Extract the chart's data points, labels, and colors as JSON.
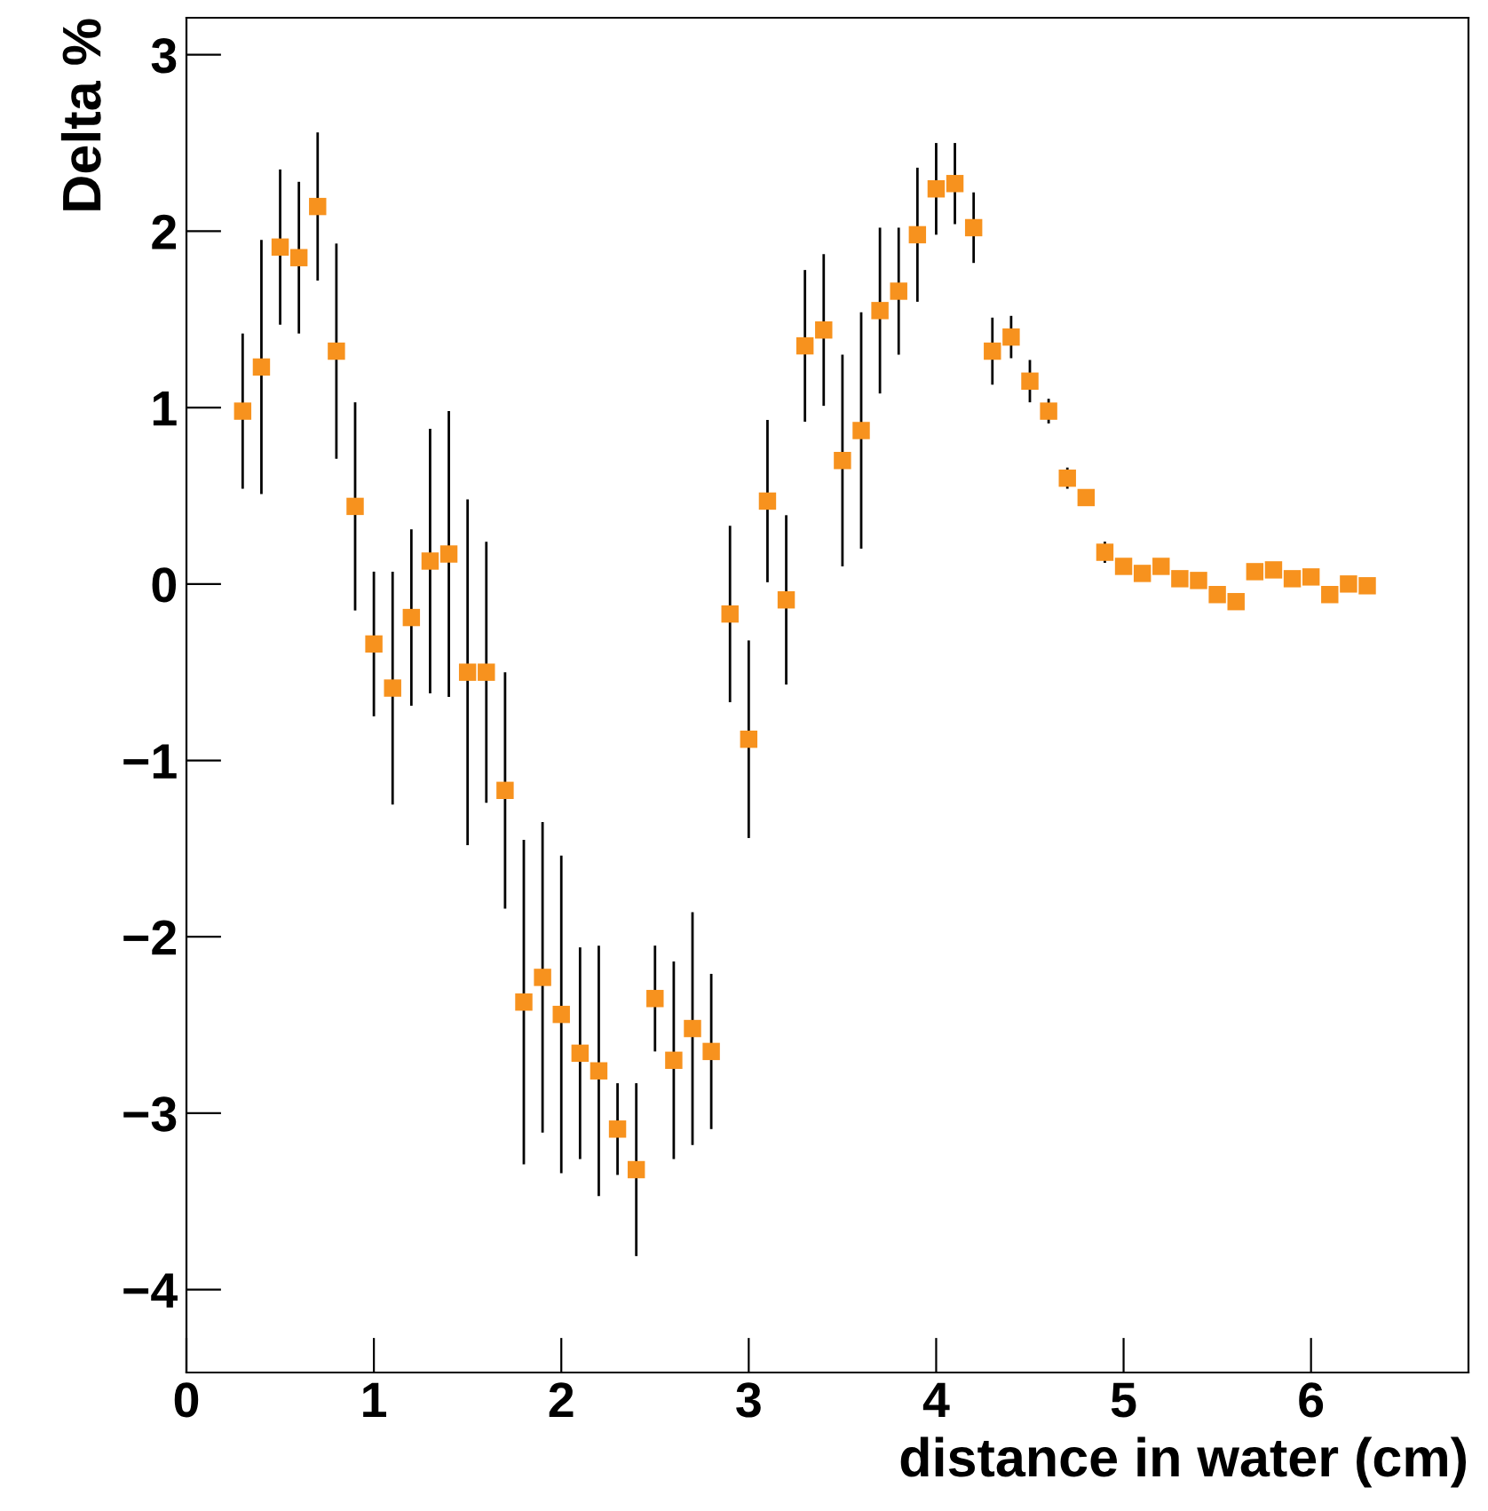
{
  "chart_data": {
    "type": "scatter",
    "xlabel": "distance in water (cm)",
    "ylabel": "Delta %",
    "xlim": [
      0,
      6.84
    ],
    "ylim": [
      -4.47,
      3.21
    ],
    "xticks": [
      0,
      1,
      2,
      3,
      4,
      5,
      6
    ],
    "yticks": [
      -4,
      -3,
      -2,
      -1,
      0,
      1,
      2,
      3
    ],
    "marker": "square",
    "grid": false,
    "series": [
      {
        "color": "#f7921e",
        "x": [
          0.3,
          0.4,
          0.5,
          0.6,
          0.7,
          0.8,
          0.9,
          1.0,
          1.1,
          1.2,
          1.3,
          1.4,
          1.5,
          1.6,
          1.7,
          1.8,
          1.9,
          2.0,
          2.1,
          2.2,
          2.3,
          2.4,
          2.5,
          2.6,
          2.7,
          2.8,
          2.9,
          3.0,
          3.1,
          3.2,
          3.3,
          3.4,
          3.5,
          3.6,
          3.7,
          3.8,
          3.9,
          4.0,
          4.1,
          4.2,
          4.3,
          4.4,
          4.5,
          4.6,
          4.7,
          4.8,
          4.9,
          5.0,
          5.1,
          5.2,
          5.3,
          5.4,
          5.5,
          5.6,
          5.7,
          5.8,
          5.9,
          6.0,
          6.1,
          6.2,
          6.3
        ],
        "values": [
          0.98,
          1.23,
          1.91,
          1.85,
          2.14,
          1.32,
          0.44,
          -0.34,
          -0.59,
          -0.19,
          0.13,
          0.17,
          -0.5,
          -0.5,
          -1.17,
          -2.37,
          -2.23,
          -2.44,
          -2.66,
          -2.76,
          -3.09,
          -3.32,
          -2.35,
          -2.7,
          -2.52,
          -2.65,
          -0.17,
          -0.88,
          0.47,
          -0.09,
          1.35,
          1.44,
          0.7,
          0.87,
          1.55,
          1.66,
          1.98,
          2.24,
          2.27,
          2.02,
          1.32,
          1.4,
          1.15,
          0.98,
          0.6,
          0.49,
          0.18,
          0.1,
          0.06,
          0.1,
          0.03,
          0.02,
          -0.06,
          -0.1,
          0.07,
          0.08,
          0.03,
          0.04,
          -0.06,
          0.0,
          -0.01
        ],
        "errors": [
          0.44,
          0.72,
          0.44,
          0.43,
          0.42,
          0.61,
          0.59,
          0.41,
          0.66,
          0.5,
          0.75,
          0.81,
          0.98,
          0.74,
          0.67,
          0.92,
          0.88,
          0.9,
          0.6,
          0.71,
          0.26,
          0.49,
          0.3,
          0.56,
          0.66,
          0.44,
          0.5,
          0.56,
          0.46,
          0.48,
          0.43,
          0.43,
          0.6,
          0.67,
          0.47,
          0.36,
          0.38,
          0.26,
          0.23,
          0.2,
          0.19,
          0.12,
          0.12,
          0.07,
          0.06,
          0.03,
          0.06,
          0.03,
          0.02,
          0.03,
          0.02,
          0.02,
          0.02,
          0.02,
          0.02,
          0.02,
          0.02,
          0.02,
          0.02,
          0.02,
          0.02
        ]
      }
    ]
  }
}
